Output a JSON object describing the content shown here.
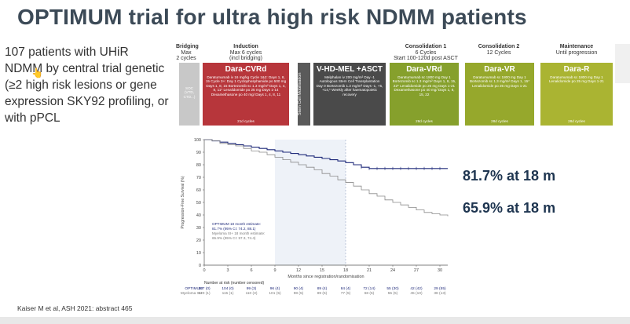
{
  "title": "OPTIMUM trial for ultra high risk NDMM patients",
  "bullet_text": "107 patients with UHiR NDMM by central trial genetic (≥2 high risk lesions or gene expression SKY92 profiling, or with pPCL",
  "scheme": {
    "phases": [
      {
        "name": "Bridging",
        "sub1": "Max",
        "sub2": "2 cycles"
      },
      {
        "name": "Induction",
        "sub1": "Max 6 cycles",
        "sub2": "(incl bridging)"
      },
      {
        "name": "Consolidation 1",
        "sub1": "6 Cycles",
        "sub2": "Start 100-120d post ASCT"
      },
      {
        "name": "Consolidation 2",
        "sub1": "12 Cycles",
        "sub2": ""
      },
      {
        "name": "Maintenance",
        "sub1": "Until progression",
        "sub2": ""
      }
    ],
    "boxes": [
      {
        "title": "",
        "body": "SOC (VTD, CTD...)",
        "footer": ""
      },
      {
        "title": "Dara-CVRd",
        "body": "Daratumumab iv 16 mg/kg Cycle 1&2: Days 1, 8, 15 Cycle 3+: Day 1 Cyclophosphamide po 500 mg Days 1, 8, 15 Bortezomib sc 1.3 mg/m² Days 1, 4, 8, 11* Lenalidomide po 25 mg Days 1-14 Dexamethasone po 40 mg/ Days 1, 4, 8, 11",
        "footer": "21d cycles"
      },
      {
        "title": "V-HD-MEL +ASCT",
        "body": "Melphalan iv 200 mg/m² Day -1 Autologous Stem Cell Transplantation Day 0 Bortezomib 1.3 mg/m² Days -1, +5, +14,* Weekly after haematopoietic recovery",
        "footer": ""
      },
      {
        "title": "Dara-VRd",
        "body": "Daratumumab sc 1800 mg Day 1 Bortezomib sc 1.3 mg/m² Days 1, 8, 15, 22* Lenalidomide po 25 mg Days 1-21 Dexamethasone po 40 mg/ Days 1, 8, 15, 22",
        "footer": "28d cycles"
      },
      {
        "title": "Dara-VR",
        "body": "Daratumumab sc 1800 mg Day 1 Bortezomib sc 1.3 mg/m² Days 1, 15* Lenalidomide po 25 mg Days 1-21",
        "footer": "28d cycles"
      },
      {
        "title": "Dara-R",
        "body": "Daratumumab sc 1800 mg Day 1 Lenalidomide po 25 mg Days 1-21",
        "footer": "28d cycles"
      }
    ],
    "mobilisation_label": "Stem Cell Mobilisation",
    "colors": {
      "soc": "#c8c8c8",
      "cvrd": "#b7363b",
      "asct": "#4a4a4a",
      "mobil": "#5a5a5a",
      "vrd": "#86a02c",
      "vr": "#96a82c",
      "r": "#aab432"
    }
  },
  "chart_data": {
    "type": "line",
    "xlabel": "Months since registration/randomisation",
    "ylabel": "Progression-Free Survival (%)",
    "xlim": [
      0,
      31
    ],
    "ylim": [
      0,
      100
    ],
    "xticks": [
      0,
      3,
      6,
      9,
      12,
      15,
      18,
      21,
      24,
      27,
      30
    ],
    "yticks": [
      0,
      10,
      20,
      30,
      40,
      50,
      60,
      70,
      80,
      90,
      100
    ],
    "series": [
      {
        "name": "OPTIMUM",
        "color": "#1f2a7a",
        "x": [
          0,
          1,
          2,
          3,
          4,
          5,
          6,
          7,
          8,
          9,
          10,
          11,
          12,
          13,
          14,
          15,
          16,
          17,
          18,
          19,
          20,
          21,
          22,
          24,
          26,
          28,
          30,
          31
        ],
        "y": [
          100,
          99,
          98,
          97,
          96,
          95,
          94,
          93,
          92,
          91,
          90,
          89,
          88,
          87,
          86,
          85,
          84,
          83,
          81.7,
          80,
          78,
          77,
          77,
          77,
          77,
          77,
          77,
          77
        ]
      },
      {
        "name": "Myeloma XI+",
        "color": "#8a8a8a",
        "x": [
          0,
          1,
          2,
          3,
          4,
          5,
          6,
          7,
          8,
          9,
          10,
          11,
          12,
          13,
          14,
          15,
          16,
          17,
          18,
          19,
          20,
          21,
          22,
          23,
          24,
          25,
          26,
          27,
          28,
          29,
          30,
          31
        ],
        "y": [
          100,
          99,
          97,
          96,
          95,
          93,
          91,
          90,
          88,
          86,
          84,
          82,
          80,
          78,
          76,
          73,
          71,
          68,
          65.9,
          63,
          60,
          57,
          55,
          52,
          50,
          48,
          46,
          44,
          42,
          41,
          40,
          39
        ]
      }
    ],
    "shaded_region": [
      9,
      18
    ],
    "annotation_lines": [
      "OPTIMUM 18 month estimate:",
      "81.7% (95% CI: 74.2, 88.1)",
      "Myeloma XI+ 18 month estimate:",
      "65.9% (95% CI: 57.3, 74.4)"
    ],
    "risk_table_title": "Number at risk (number censored)",
    "risk_rows": [
      {
        "label": "OPTIMUM",
        "values": [
          "107 (0)",
          "104 (0)",
          "99 (3)",
          "96 (4)",
          "90 (4)",
          "89 (4)",
          "84 (4)",
          "72 (14)",
          "55 (30)",
          "42 (42)",
          "29 (55)"
        ]
      },
      {
        "label": "Myeloma XI+",
        "values": [
          "120 (1)",
          "115 (1)",
          "110 (3)",
          "101 (5)",
          "98 (5)",
          "89 (5)",
          "77 (5)",
          "68 (5)",
          "55 (5)",
          "45 (10)",
          "38 (13)"
        ]
      }
    ]
  },
  "estimate_1": "81.7% at 18 m",
  "estimate_2": "65.9% at 18 m",
  "footer": "Kaiser M et al, ASH 2021: abstract 465"
}
